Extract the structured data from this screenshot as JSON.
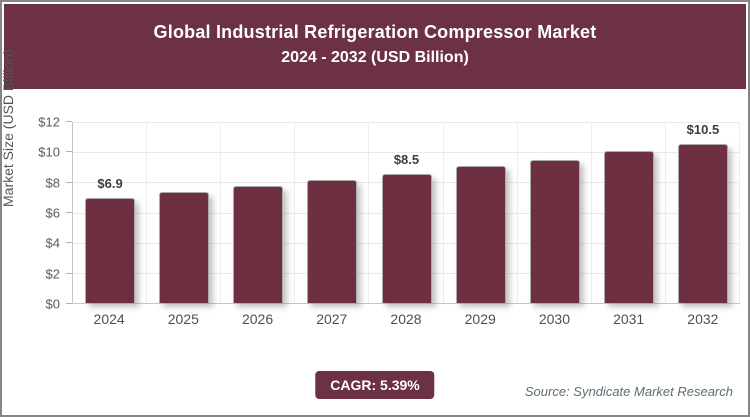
{
  "header": {
    "title_line1": "Global Industrial Refrigeration Compressor Market",
    "title_line2": "2024 - 2032 (USD Billion)"
  },
  "chart_data": {
    "type": "bar",
    "title": "Global Industrial Refrigeration Compressor Market 2024 - 2032 (USD Billion)",
    "categories": [
      "2024",
      "2025",
      "2026",
      "2027",
      "2028",
      "2029",
      "2030",
      "2031",
      "2032"
    ],
    "values": [
      6.9,
      7.3,
      7.7,
      8.1,
      8.5,
      9.0,
      9.4,
      10.0,
      10.5
    ],
    "point_labels": [
      "$6.9",
      "",
      "",
      "",
      "$8.5",
      "",
      "",
      "",
      "$10.5"
    ],
    "xlabel": "",
    "ylabel": "Market Size (USD Billion)",
    "ylim": [
      0,
      12
    ],
    "ytick_labels": [
      "$0",
      "$2",
      "$4",
      "$6",
      "$8",
      "$10",
      "$12"
    ],
    "grid": true,
    "legend": "none",
    "bar_color": "#6e2f40"
  },
  "footer": {
    "cagr_label": "CAGR: 5.39%",
    "source": "Source: Syndicate Market Research"
  },
  "colors": {
    "header_bg": "#6d3144",
    "bar": "#6e2f40",
    "badge_bg": "#6d3144",
    "border": "#868686",
    "source_text": "#5c6e76",
    "gridline": "#e9e9e9"
  }
}
